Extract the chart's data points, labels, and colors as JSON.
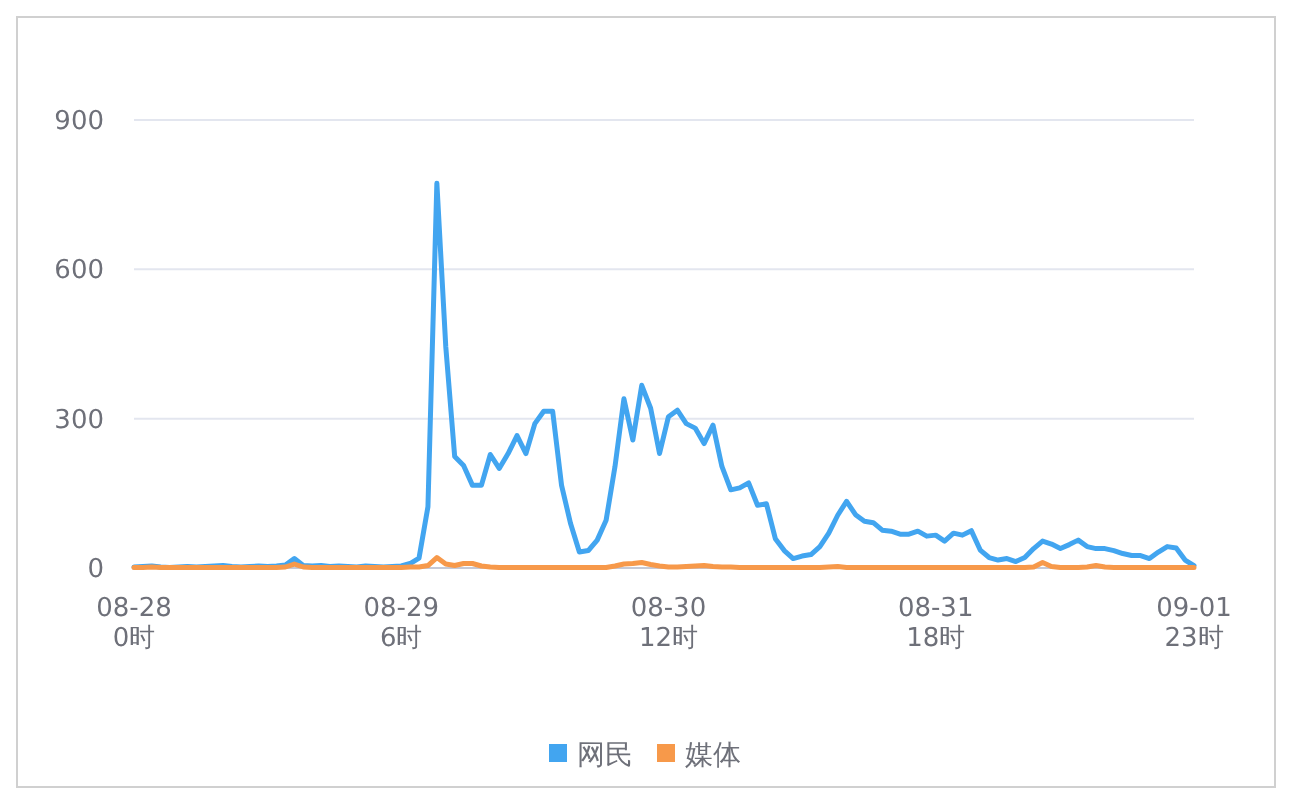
{
  "chart_data": {
    "type": "line",
    "categories": [
      "08-28\n0时",
      null,
      null,
      null,
      null,
      null,
      null,
      null,
      null,
      null,
      null,
      null,
      null,
      null,
      null,
      null,
      null,
      null,
      null,
      null,
      null,
      null,
      null,
      null,
      null,
      null,
      null,
      null,
      null,
      null,
      "08-29\n6时",
      null,
      null,
      null,
      null,
      null,
      null,
      null,
      null,
      null,
      null,
      null,
      null,
      null,
      null,
      null,
      null,
      null,
      null,
      null,
      null,
      null,
      null,
      null,
      null,
      null,
      null,
      null,
      null,
      null,
      "08-30\n12时",
      null,
      null,
      null,
      null,
      null,
      null,
      null,
      null,
      null,
      null,
      null,
      null,
      null,
      null,
      null,
      null,
      null,
      null,
      null,
      null,
      null,
      null,
      null,
      null,
      null,
      null,
      null,
      null,
      null,
      "08-31\n18时",
      null,
      null,
      null,
      null,
      null,
      null,
      null,
      null,
      null,
      null,
      null,
      null,
      null,
      null,
      null,
      null,
      null,
      null,
      null,
      null,
      null,
      null,
      null,
      null,
      null,
      null,
      null,
      null,
      "09-01\n23时"
    ],
    "series": [
      {
        "name": "网民",
        "color": "#42a5f0",
        "values": [
          2,
          3,
          4,
          2,
          1,
          2,
          3,
          2,
          3,
          4,
          5,
          3,
          2,
          3,
          4,
          3,
          4,
          6,
          19,
          5,
          4,
          5,
          3,
          4,
          3,
          2,
          4,
          3,
          2,
          3,
          4,
          9,
          20,
          123,
          773,
          445,
          224,
          206,
          166,
          166,
          228,
          200,
          230,
          266,
          230,
          290,
          315,
          315,
          166,
          90,
          32,
          35,
          56,
          96,
          204,
          340,
          257,
          367,
          321,
          230,
          304,
          317,
          290,
          281,
          250,
          287,
          204,
          157,
          161,
          171,
          126,
          129,
          59,
          35,
          19,
          24,
          27,
          43,
          70,
          106,
          134,
          107,
          94,
          91,
          76,
          74,
          68,
          68,
          74,
          64,
          66,
          54,
          70,
          66,
          75,
          36,
          21,
          16,
          19,
          13,
          21,
          39,
          54,
          48,
          39,
          47,
          56,
          43,
          39,
          39,
          35,
          29,
          25,
          25,
          19,
          32,
          43,
          40,
          16,
          5
        ]
      },
      {
        "name": "媒体",
        "color": "#f7994a",
        "values": [
          1,
          1,
          2,
          1,
          1,
          1,
          1,
          1,
          1,
          1,
          1,
          1,
          1,
          1,
          1,
          1,
          1,
          2,
          8,
          2,
          1,
          1,
          1,
          1,
          1,
          1,
          1,
          1,
          1,
          1,
          1,
          2,
          2,
          5,
          21,
          8,
          5,
          9,
          9,
          4,
          2,
          1,
          1,
          1,
          1,
          1,
          1,
          1,
          1,
          1,
          1,
          1,
          1,
          1,
          4,
          8,
          9,
          11,
          7,
          4,
          2,
          2,
          3,
          4,
          5,
          3,
          2,
          2,
          1,
          1,
          1,
          1,
          1,
          1,
          1,
          1,
          1,
          1,
          2,
          3,
          1,
          1,
          1,
          1,
          1,
          1,
          1,
          1,
          1,
          1,
          1,
          1,
          1,
          1,
          1,
          1,
          1,
          1,
          1,
          1,
          1,
          2,
          11,
          3,
          1,
          1,
          1,
          2,
          5,
          2,
          1,
          1,
          1,
          1,
          1,
          1,
          1,
          1,
          1,
          1
        ]
      }
    ],
    "ylim": [
      0,
      900
    ],
    "yticks": [
      0,
      300,
      600,
      900
    ],
    "grid": "y",
    "legend": "bottom"
  }
}
